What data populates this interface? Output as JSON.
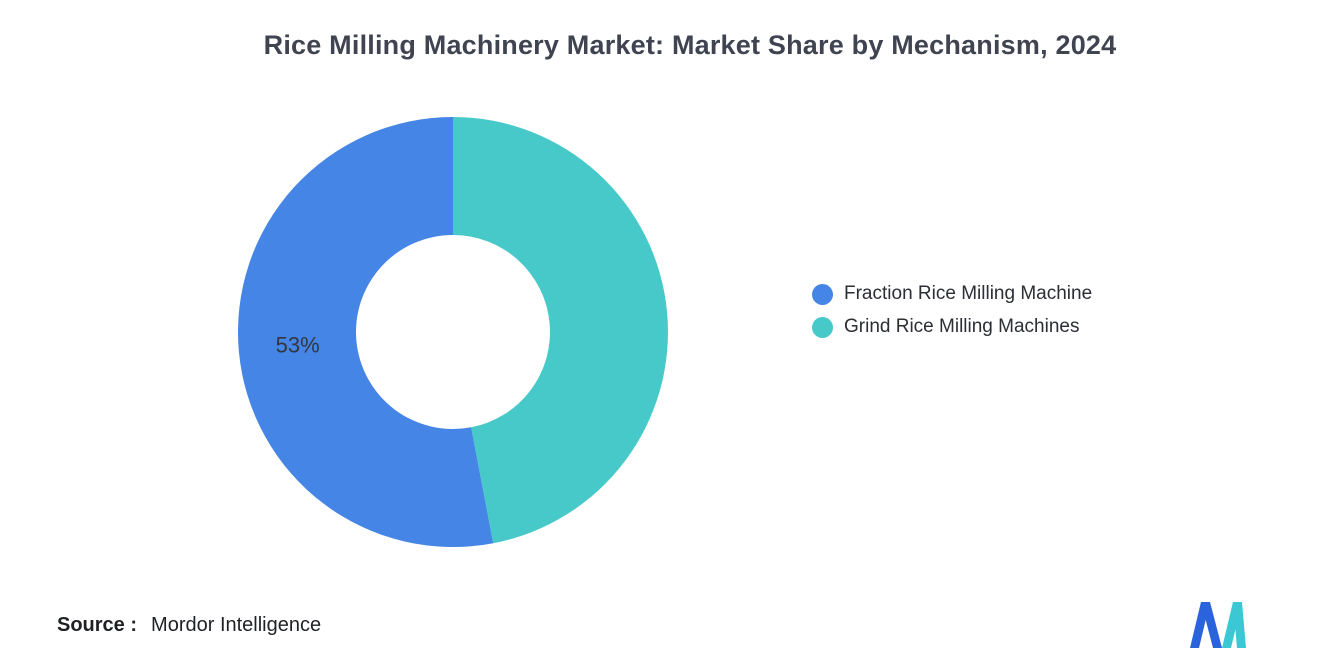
{
  "title": "Rice Milling Machinery Market: Market Share by Mechanism, 2024",
  "chart_data": {
    "type": "pie",
    "subtype": "donut",
    "title": "Rice Milling Machinery Market: Market Share by Mechanism, 2024",
    "direction": "counterclockwise",
    "start_angle_deg": 0,
    "inner_radius_ratio": 0.45,
    "legend_position": "right",
    "slices": [
      {
        "label": "Fraction Rice Milling Machine",
        "value": 53,
        "data_label": "53%",
        "color": "#4585E6"
      },
      {
        "label": "Grind Rice Milling Machines",
        "value": 47,
        "data_label": "",
        "color": "#47C8C9"
      }
    ]
  },
  "source": {
    "prefix": "Source :",
    "name": "Mordor Intelligence"
  },
  "logo": {
    "name": "mordor-intelligence-logo",
    "blue": "#2A63DC",
    "teal": "#3BC8D4"
  },
  "data_label_color": "#33373d"
}
